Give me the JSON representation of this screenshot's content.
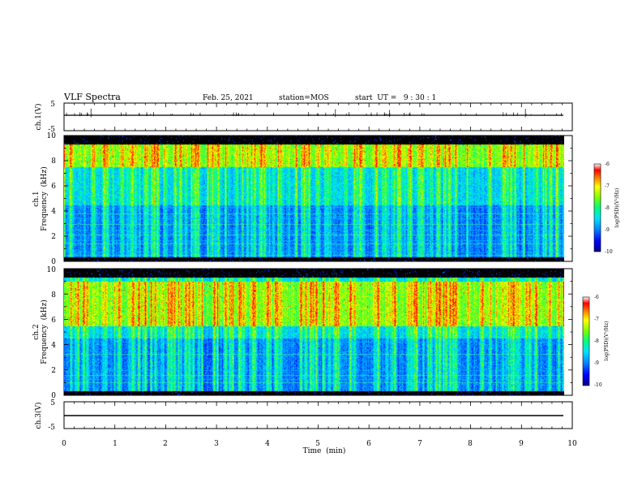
{
  "header": {
    "title": "VLF Spectra",
    "date": "Feb. 25, 2021",
    "station": "station=MOS",
    "start_ut": "start  UT =   9 : 30 : 1"
  },
  "colors": {
    "background": "#000000",
    "colormap": [
      "#00008b",
      "#0000ff",
      "#0080ff",
      "#00e0ff",
      "#00ff80",
      "#80ff00",
      "#ffff00",
      "#ff8000",
      "#ff0000",
      "#ffffff"
    ],
    "trace": "#000000"
  },
  "chart_data": [
    {
      "type": "line",
      "panel": "ch1-waveform",
      "ylabel": "ch.1(V)",
      "ylim": [
        -5,
        5
      ],
      "yticks": [
        "5",
        "-5"
      ],
      "xlim": [
        0,
        10
      ],
      "x": [
        0,
        9.83
      ],
      "values": [
        0,
        0
      ]
    },
    {
      "type": "heatmap",
      "panel": "ch1-spectrogram",
      "ylabel_line1": "ch.1",
      "ylabel_line2": "Frequency  (kHz)",
      "ylim": [
        0,
        10
      ],
      "yticks": [
        "0",
        "2",
        "4",
        "6",
        "8",
        "10"
      ],
      "xlim": [
        0,
        10
      ],
      "data_end_min": 9.83,
      "colorbar": {
        "label": "log(PSD)(V²/Hz)",
        "range": [
          -10,
          -6
        ],
        "ticks": [
          "-6",
          "-7",
          "-8",
          "-9",
          "-10"
        ]
      },
      "intense_band_khz": [
        7.5,
        9.3
      ],
      "lines_khz": [
        0.5,
        0.8,
        1.4,
        1.7,
        2.1,
        2.5,
        3.0,
        3.4,
        3.8,
        4.3
      ]
    },
    {
      "type": "heatmap",
      "panel": "ch2-spectrogram",
      "ylabel_line1": "ch.2",
      "ylabel_line2": "Frequency  (kHz)",
      "ylim": [
        0,
        10
      ],
      "yticks": [
        "0",
        "2",
        "4",
        "6",
        "8",
        "10"
      ],
      "xlim": [
        0,
        10
      ],
      "data_end_min": 9.83,
      "colorbar": {
        "label": "log(PSD)(V²/Hz)",
        "range": [
          -10,
          -6
        ],
        "ticks": [
          "-6",
          "-7",
          "-8",
          "-9",
          "-10"
        ]
      },
      "intense_band_khz": [
        5.5,
        9.0
      ],
      "lines_khz": [
        1.0,
        1.3,
        1.6,
        2.0,
        3.3,
        4.2
      ]
    },
    {
      "type": "line",
      "panel": "ch3-waveform",
      "ylabel": "ch.3(V)",
      "ylim": [
        -5,
        5
      ],
      "yticks": [
        "5",
        "-5"
      ],
      "xlim": [
        0,
        10
      ],
      "x": [
        0,
        9.83
      ],
      "values": [
        0,
        0
      ]
    }
  ],
  "xaxis": {
    "label": "Time  (min)",
    "ticks": [
      "0",
      "1",
      "2",
      "3",
      "4",
      "5",
      "6",
      "7",
      "8",
      "9",
      "10"
    ]
  }
}
